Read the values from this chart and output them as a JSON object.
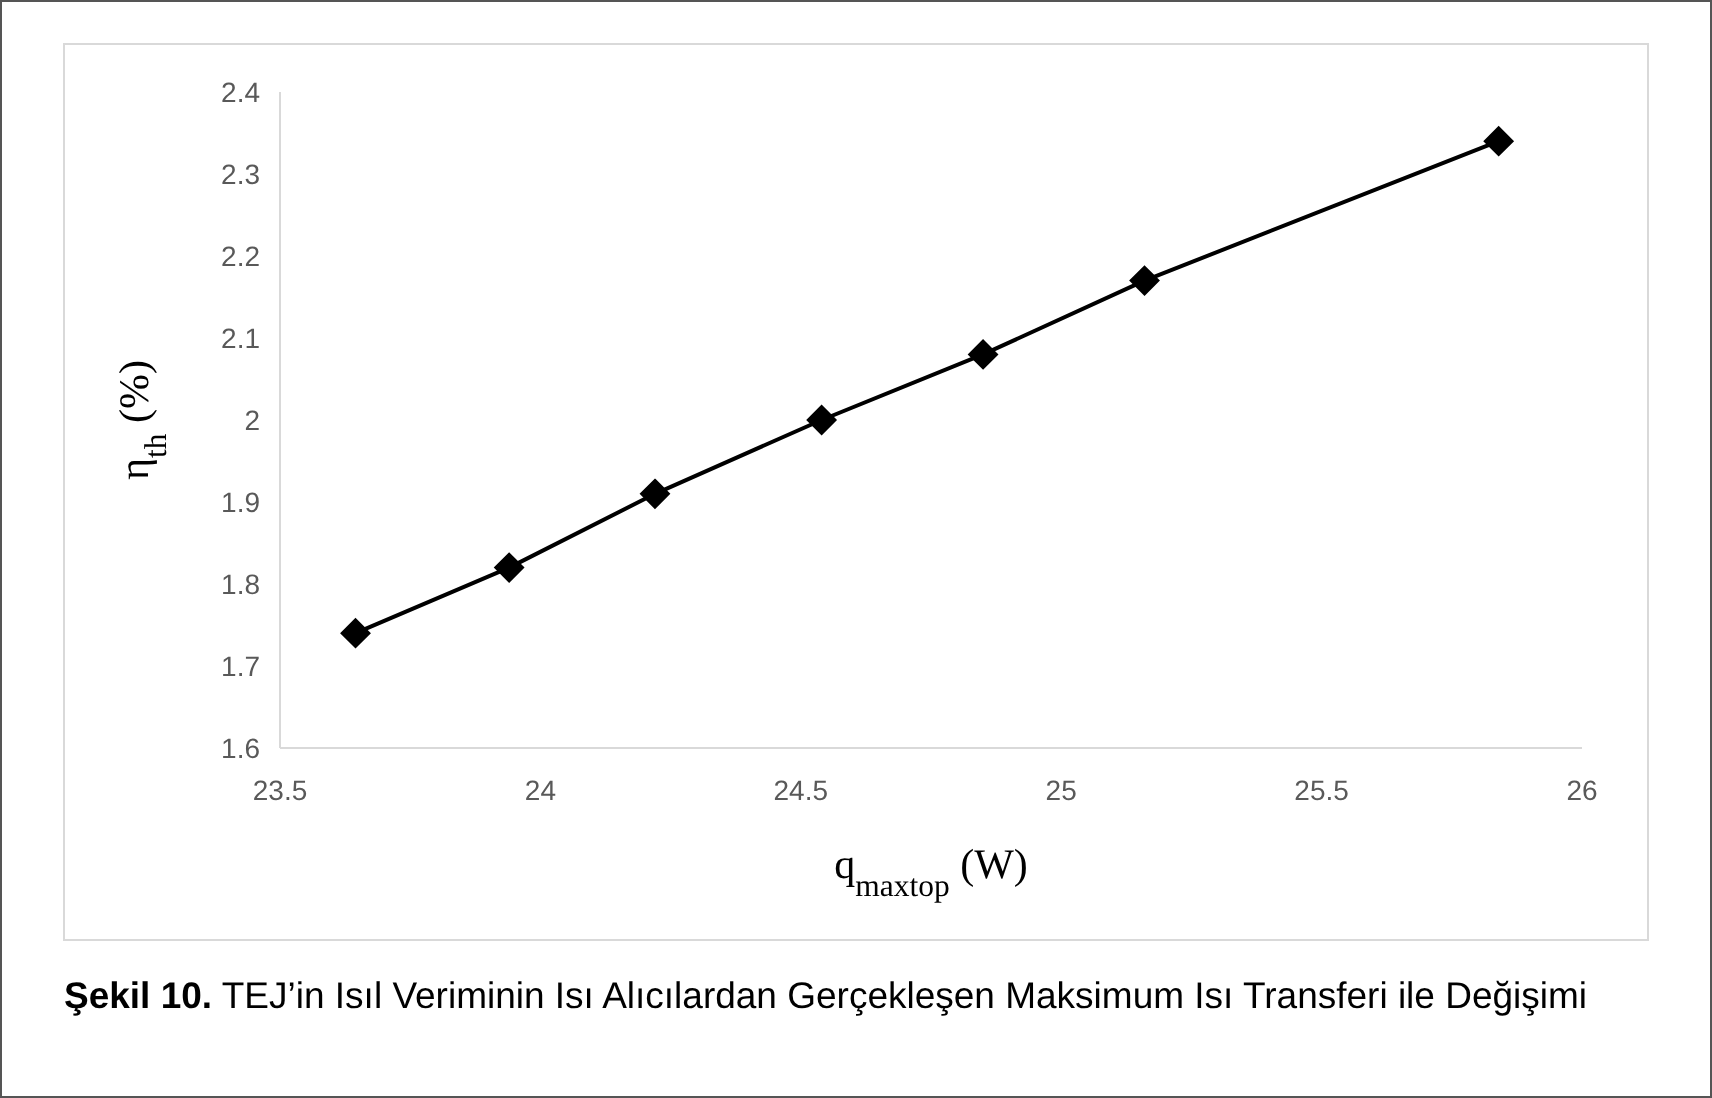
{
  "chart_data": {
    "type": "line",
    "title": "Şekil 10.",
    "annotations": [
      "TEJ’in Isıl Veriminin Isı Alıcılardan Gerçekleşen Maksimum Isı Transferi ile Değişimi"
    ],
    "xlabel": "q$_{maxtop}$ (W)",
    "ylabel": "η$_{th}$ (%)",
    "x": [
      23.645,
      23.94,
      24.22,
      24.54,
      24.85,
      25.16,
      25.84
    ],
    "series": [
      {
        "color": "#000000",
        "values": [
          1.74,
          1.82,
          1.91,
          2.0,
          2.08,
          2.17,
          2.34
        ]
      }
    ],
    "xlim": [
      23.5,
      26
    ],
    "xticks": [
      23.5,
      24,
      24.5,
      25,
      25.5,
      26
    ],
    "ylim": [
      1.6,
      2.4
    ],
    "yticks": [
      1.6,
      1.7,
      1.8,
      1.9,
      2,
      2.1,
      2.2,
      2.3,
      2.4
    ],
    "marker": "diamond",
    "line_style": "solid"
  }
}
